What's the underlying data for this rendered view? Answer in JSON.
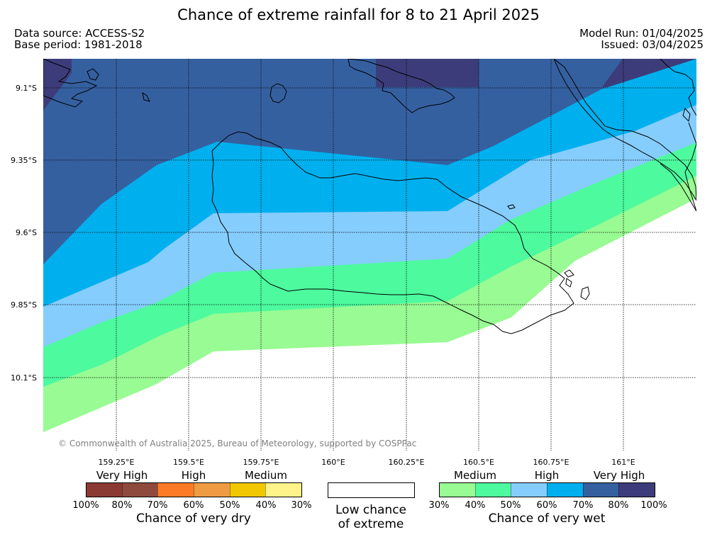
{
  "title": "Chance of extreme rainfall for 8 to 21 April 2025",
  "meta": {
    "data_source": "Data source: ACCESS-S2",
    "base_period": "Base period: 1981-2018",
    "model_run": "Model Run: 01/04/2025",
    "issued": "Issued: 03/04/2025"
  },
  "map": {
    "lat_labels": [
      "9.1°S",
      "9.35°S",
      "9.6°S",
      "9.85°S",
      "10.1°S"
    ],
    "lon_labels": [
      "159.25°E",
      "159.5°E",
      "159.75°E",
      "160°E",
      "160.25°E",
      "160.5°E",
      "160.75°E",
      "161°E"
    ],
    "copyright": "© Commonwealth of Australia 2025, Bureau of Meteorology, supported by COSPPac",
    "band_colors": {
      "wet_80_100": "#3d3c7a",
      "wet_70_80": "#3560a0",
      "wet_60_70": "#00b0ee",
      "wet_50_60": "#85cdfd",
      "wet_40_50": "#4dfa9e",
      "wet_30_40": "#99fb93",
      "none": "#ffffff"
    }
  },
  "legend": {
    "dry": {
      "categories": [
        "Very High",
        "High",
        "Medium"
      ],
      "ticks": [
        "100%",
        "80%",
        "70%",
        "60%",
        "50%",
        "40%",
        "30%"
      ],
      "colors": [
        "#8b3a33",
        "#8d4a3d",
        "#fc7a25",
        "#ee9b44",
        "#f1c800",
        "#fff389"
      ],
      "title": "Chance of very dry"
    },
    "low": {
      "line1": "Low chance",
      "line2": "of extreme"
    },
    "wet": {
      "categories": [
        "Medium",
        "High",
        "Very High"
      ],
      "ticks": [
        "30%",
        "40%",
        "50%",
        "60%",
        "70%",
        "80%",
        "100%"
      ],
      "colors": [
        "#99fb93",
        "#4dfa9e",
        "#85cdfd",
        "#00b0ee",
        "#3560a0",
        "#3d3c7a"
      ],
      "title": "Chance of very wet"
    }
  }
}
